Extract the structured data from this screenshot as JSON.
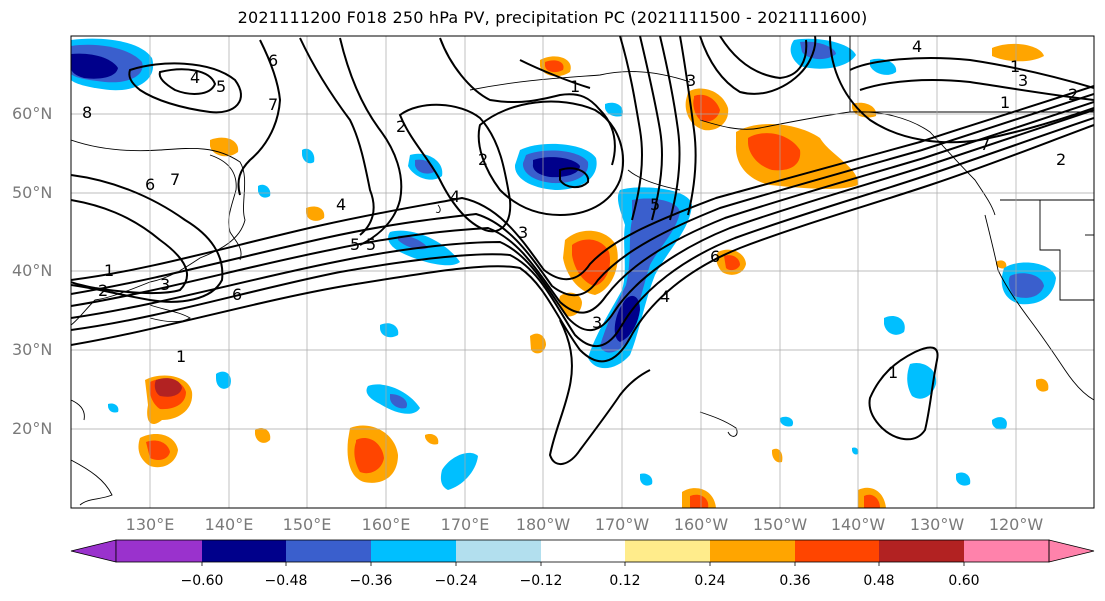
{
  "title": "2021111200 F018 250 hPa PV, precipitation PC (2021111500 - 2021111600)",
  "latitude_labels": [
    "60°N",
    "50°N",
    "40°N",
    "30°N",
    "20°N"
  ],
  "longitude_labels": [
    "130°E",
    "140°E",
    "150°E",
    "160°E",
    "170°E",
    "180°W",
    "170°W",
    "160°W",
    "150°W",
    "140°W",
    "130°W",
    "120°W"
  ],
  "colorbar": {
    "ticks": [
      "−0.60",
      "−0.48",
      "−0.36",
      "−0.24",
      "−0.12",
      "0.12",
      "0.24",
      "0.36",
      "0.48",
      "0.60"
    ],
    "colors": [
      "#9a32cd",
      "#00008b",
      "#3a5fcd",
      "#00bfff",
      "#b2dfee",
      "#ffffff",
      "#ffec8b",
      "#ffa500",
      "#ff4500",
      "#b22222",
      "#ff82ab"
    ]
  },
  "contour_labels": [
    "4",
    "5",
    "6",
    "7",
    "8",
    "1",
    "2",
    "3",
    "4",
    "5",
    "6",
    "7",
    "6",
    "5",
    "4",
    "3",
    "2",
    "1",
    "1",
    "2",
    "3",
    "4",
    "5",
    "6",
    "7",
    "1",
    "1",
    "2",
    "3",
    "3",
    "4",
    "7",
    "2",
    "1"
  ]
}
